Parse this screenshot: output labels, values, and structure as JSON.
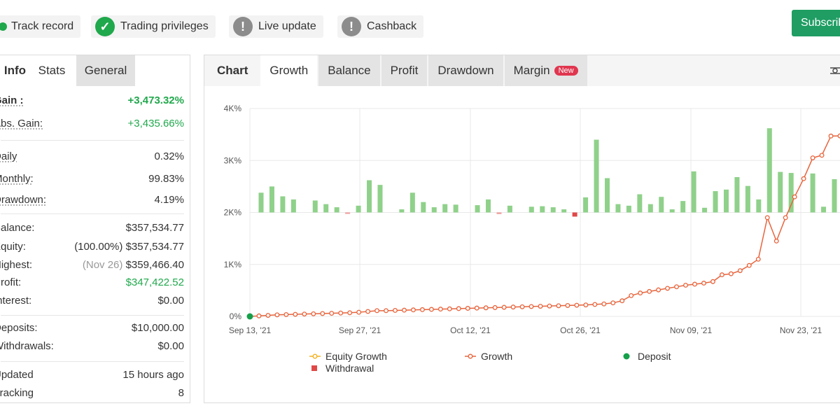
{
  "badges": [
    {
      "label": "Track record",
      "icon": "green-dot-icon"
    },
    {
      "label": "Trading privileges",
      "icon": "checkmark-icon"
    },
    {
      "label": "Live update",
      "icon": "exclamation-icon"
    },
    {
      "label": "Cashback",
      "icon": "exclamation-icon"
    }
  ],
  "subscribe_label": "Subscrib",
  "left_tabs": [
    "Info",
    "Stats",
    "General"
  ],
  "stats": {
    "gain_label": "Gain :",
    "gain_value": "+3,473.32%",
    "abs_gain_label": "Abs. Gain:",
    "abs_gain_value": "+3,435.66%",
    "daily_label": "Daily",
    "daily_value": "0.32%",
    "monthly_label": "Monthly:",
    "monthly_value": "99.83%",
    "drawdown_label": "Drawdown:",
    "drawdown_value": "4.19%",
    "balance_label": "Balance:",
    "balance_value": "$357,534.77",
    "equity_label": "Equity:",
    "equity_pct": "(100.00%)",
    "equity_value": "$357,534.77",
    "highest_label": "Highest:",
    "highest_date": "(Nov 26)",
    "highest_value": "$359,466.40",
    "profit_label": "Profit:",
    "profit_value": "$347,422.52",
    "interest_label": "Interest:",
    "interest_value": "$0.00",
    "deposits_label": "Deposits:",
    "deposits_value": "$10,000.00",
    "withdrawals_label": "Withdrawals:",
    "withdrawals_value": "$0.00",
    "updated_label": "Updated",
    "updated_value": "15 hours ago",
    "tracking_label": "Tracking",
    "tracking_value": "8"
  },
  "chart_tabs": {
    "label": "Chart",
    "tabs": [
      "Growth",
      "Balance",
      "Profit",
      "Drawdown",
      "Margin"
    ],
    "active": "Growth",
    "new_badge": "New"
  },
  "chart_data": {
    "type": "line",
    "title": "",
    "y_ticks": [
      "4K%",
      "3K%",
      "2K%",
      "1K%",
      "0%"
    ],
    "ylim": [
      0,
      4000
    ],
    "x_ticks": [
      "Sep 13, '21",
      "Sep 27, '21",
      "Oct 12, '21",
      "Oct 26, '21",
      "Nov 09, '21",
      "Nov 23, '21"
    ],
    "legend": [
      "Equity Growth",
      "Growth",
      "Deposit",
      "Withdrawal"
    ],
    "colors": {
      "growth": "#e8643c",
      "equity": "#f2b01e",
      "bar": "#8fd18a",
      "deposit": "#16a04a",
      "withdrawal": "#e04848"
    },
    "growth": [
      0,
      10,
      20,
      30,
      35,
      40,
      45,
      50,
      55,
      60,
      65,
      70,
      80,
      95,
      110,
      110,
      115,
      120,
      125,
      130,
      135,
      140,
      145,
      150,
      155,
      160,
      165,
      170,
      175,
      180,
      185,
      190,
      195,
      200,
      205,
      210,
      215,
      220,
      230,
      240,
      260,
      300,
      400,
      450,
      480,
      510,
      540,
      570,
      600,
      620,
      640,
      670,
      800,
      820,
      880,
      980,
      1100,
      1900,
      1450,
      1900,
      2300,
      2650,
      3050,
      3100,
      3470,
      3473
    ],
    "daily_bars": [
      380,
      500,
      310,
      250,
      0,
      230,
      160,
      100,
      -20,
      130,
      620,
      530,
      0,
      60,
      380,
      200,
      100,
      160,
      150,
      0,
      140,
      250,
      -30,
      130,
      0,
      110,
      120,
      100,
      60,
      -80,
      290,
      1400,
      660,
      160,
      130,
      350,
      160,
      300,
      60,
      220,
      790,
      90,
      410,
      440,
      680,
      510,
      250,
      1620,
      780,
      760,
      0,
      750,
      110,
      640
    ]
  }
}
